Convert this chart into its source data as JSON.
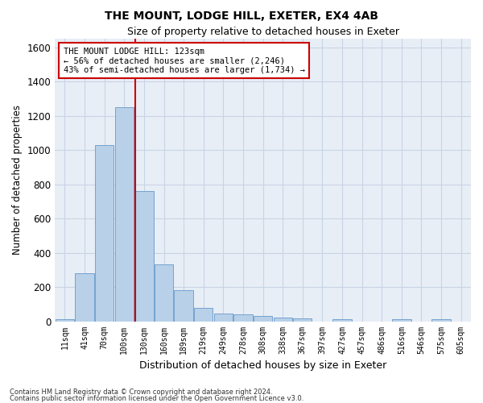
{
  "title1": "THE MOUNT, LODGE HILL, EXETER, EX4 4AB",
  "title2": "Size of property relative to detached houses in Exeter",
  "xlabel": "Distribution of detached houses by size in Exeter",
  "ylabel": "Number of detached properties",
  "categories": [
    "11sqm",
    "41sqm",
    "70sqm",
    "100sqm",
    "130sqm",
    "160sqm",
    "189sqm",
    "219sqm",
    "249sqm",
    "278sqm",
    "308sqm",
    "338sqm",
    "367sqm",
    "397sqm",
    "427sqm",
    "457sqm",
    "486sqm",
    "516sqm",
    "546sqm",
    "575sqm",
    "605sqm"
  ],
  "values": [
    10,
    280,
    1030,
    1250,
    760,
    330,
    180,
    80,
    45,
    40,
    30,
    22,
    15,
    0,
    10,
    0,
    0,
    14,
    0,
    14,
    0
  ],
  "bar_color": "#b8d0e8",
  "bar_edge_color": "#6699cc",
  "bar_width": 0.95,
  "vline_x": 3.55,
  "vline_color": "#cc0000",
  "annotation_text": "THE MOUNT LODGE HILL: 123sqm\n← 56% of detached houses are smaller (2,246)\n43% of semi-detached houses are larger (1,734) →",
  "annotation_box_color": "#ffffff",
  "annotation_box_edge": "#cc0000",
  "ylim": [
    0,
    1650
  ],
  "yticks": [
    0,
    200,
    400,
    600,
    800,
    1000,
    1200,
    1400,
    1600
  ],
  "grid_color": "#c8d4e4",
  "background_color": "#e8eef6",
  "footnote1": "Contains HM Land Registry data © Crown copyright and database right 2024.",
  "footnote2": "Contains public sector information licensed under the Open Government Licence v3.0."
}
